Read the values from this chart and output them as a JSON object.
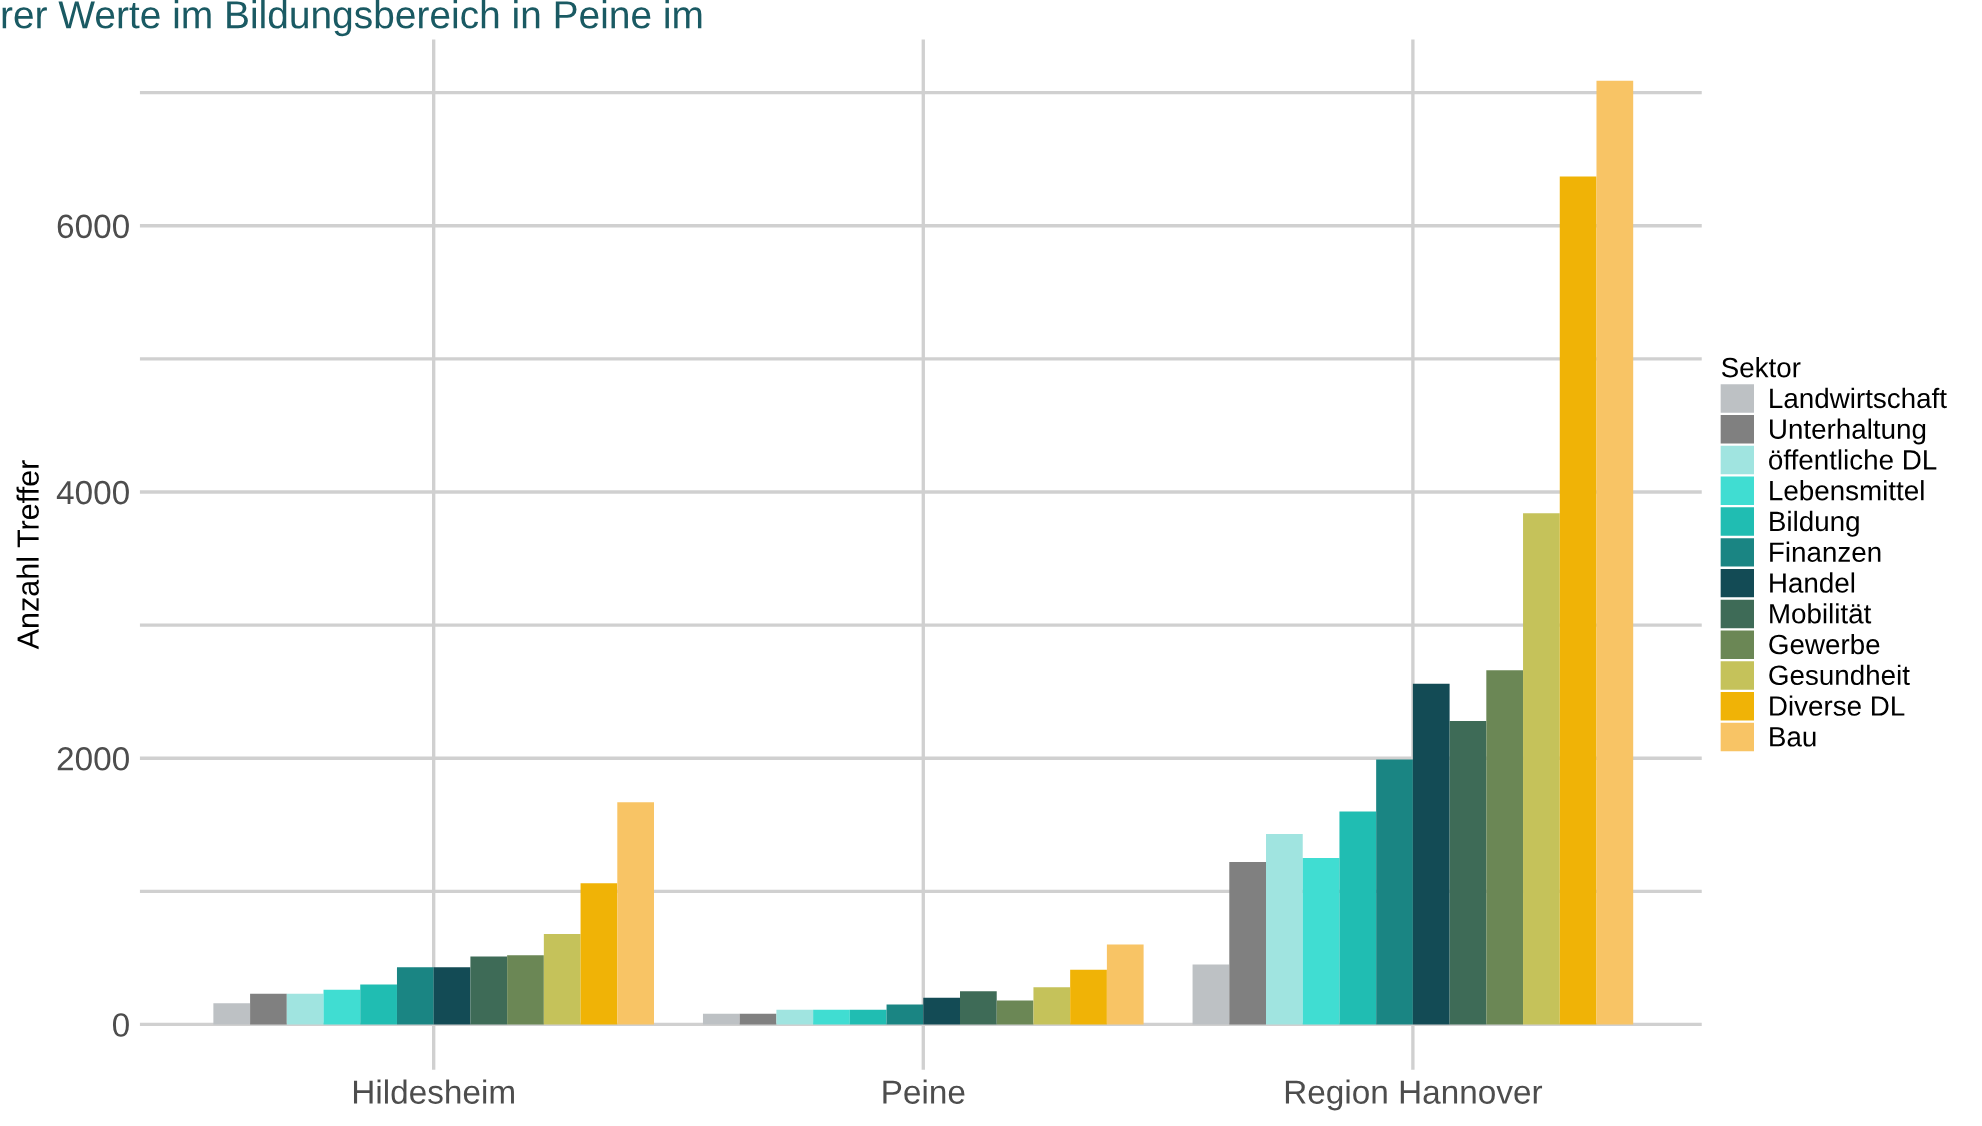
{
  "chart_data": {
    "type": "bar",
    "title": "rer Werte im Bildungsbereich in Peine im",
    "ylabel": "Anzahl Treffer",
    "legend_title": "Sektor",
    "categories": [
      "Hildesheim",
      "Peine",
      "Region Hannover"
    ],
    "series": [
      {
        "name": "Landwirtschaft",
        "color": "#bdc1c4",
        "values": [
          160,
          80,
          450
        ]
      },
      {
        "name": "Unterhaltung",
        "color": "#808080",
        "values": [
          230,
          80,
          1220
        ]
      },
      {
        "name": "öffentliche DL",
        "color": "#a0e4e0",
        "values": [
          230,
          110,
          1430
        ]
      },
      {
        "name": "Lebensmittel",
        "color": "#40ddd2",
        "values": [
          260,
          110,
          1250
        ]
      },
      {
        "name": "Bildung",
        "color": "#20bdb2",
        "values": [
          300,
          110,
          1600
        ]
      },
      {
        "name": "Finanzen",
        "color": "#1a8583",
        "values": [
          430,
          150,
          1990
        ]
      },
      {
        "name": "Handel",
        "color": "#134b55",
        "values": [
          430,
          200,
          2560
        ]
      },
      {
        "name": "Mobilität",
        "color": "#3e6b57",
        "values": [
          510,
          250,
          2280
        ]
      },
      {
        "name": "Gewerbe",
        "color": "#6b8755",
        "values": [
          520,
          180,
          2660
        ]
      },
      {
        "name": "Gesundheit",
        "color": "#c5c25a",
        "values": [
          680,
          280,
          3840
        ]
      },
      {
        "name": "Diverse DL",
        "color": "#f0b306",
        "values": [
          1060,
          410,
          6370
        ]
      },
      {
        "name": "Bau",
        "color": "#f8c465",
        "values": [
          1670,
          600,
          7090
        ]
      }
    ],
    "ylim": [
      -340,
      7400
    ],
    "yticks": [
      0,
      {
        "value": 1000,
        "label": null
      },
      2000,
      {
        "value": 3000,
        "label": null
      },
      4000,
      {
        "value": 5000,
        "label": null
      },
      6000,
      {
        "value": 7000,
        "label": null
      }
    ],
    "grid": true,
    "legend": "right"
  }
}
